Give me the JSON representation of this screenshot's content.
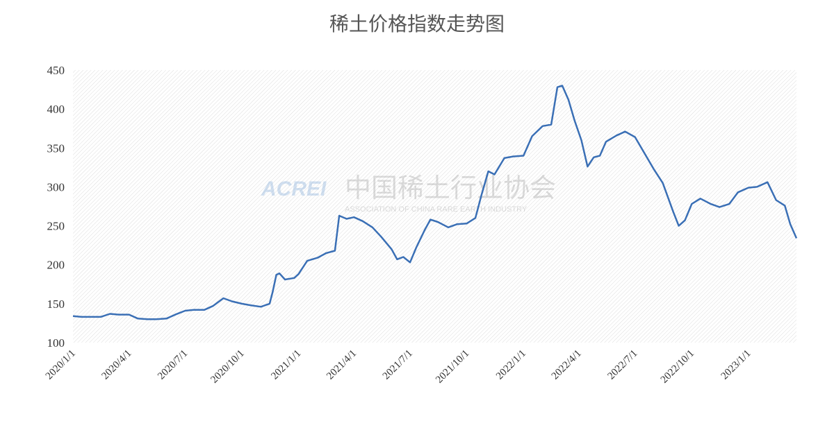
{
  "chart_data": {
    "type": "line",
    "title": "稀土价格指数走势图",
    "watermark": {
      "logo": "ACREI",
      "name": "中国稀土行业协会",
      "subtitle": "ASSOCIATION OF CHINA RARE EARTH INDUSTRY"
    },
    "x": [
      "2020/1/1",
      "2020/1/15",
      "2020/2/1",
      "2020/2/15",
      "2020/3/1",
      "2020/3/15",
      "2020/4/1",
      "2020/4/15",
      "2020/5/1",
      "2020/5/15",
      "2020/6/1",
      "2020/6/15",
      "2020/7/1",
      "2020/7/15",
      "2020/8/1",
      "2020/8/15",
      "2020/9/1",
      "2020/9/15",
      "2020/10/1",
      "2020/10/15",
      "2020/11/1",
      "2020/11/15",
      "2020/11/20",
      "2020/11/26",
      "2020/12/1",
      "2020/12/10",
      "2020/12/25",
      "2021/1/1",
      "2021/1/15",
      "2021/2/1",
      "2021/2/15",
      "2021/3/1",
      "2021/3/8",
      "2021/3/20",
      "2021/4/1",
      "2021/4/15",
      "2021/5/1",
      "2021/5/15",
      "2021/6/1",
      "2021/6/10",
      "2021/6/20",
      "2021/7/1",
      "2021/7/11",
      "2021/7/25",
      "2021/8/3",
      "2021/8/15",
      "2021/9/1",
      "2021/9/15",
      "2021/10/1",
      "2021/10/15",
      "2021/10/25",
      "2021/11/5",
      "2021/11/15",
      "2021/12/1",
      "2021/12/15",
      "2022/1/1",
      "2022/1/15",
      "2022/2/1",
      "2022/2/15",
      "2022/2/25",
      "2022/3/5",
      "2022/3/15",
      "2022/3/25",
      "2022/4/5",
      "2022/4/15",
      "2022/4/25",
      "2022/5/5",
      "2022/5/15",
      "2022/6/1",
      "2022/6/15",
      "2022/7/1",
      "2022/7/15",
      "2022/8/1",
      "2022/8/15",
      "2022/9/1",
      "2022/9/10",
      "2022/9/20",
      "2022/10/1",
      "2022/10/15",
      "2022/11/1",
      "2022/11/15",
      "2022/12/1",
      "2022/12/15",
      "2023/1/1",
      "2023/1/15",
      "2023/2/1",
      "2023/2/15",
      "2023/3/1",
      "2023/3/10",
      "2023/3/20"
    ],
    "series": [
      {
        "name": "稀土价格指数",
        "color": "#3a6fb5",
        "values": [
          134,
          133,
          133,
          133,
          137,
          136,
          136,
          131,
          130,
          130,
          131,
          136,
          141,
          142,
          142,
          147,
          157,
          153,
          150,
          148,
          146,
          150,
          165,
          187,
          189,
          181,
          183,
          188,
          205,
          209,
          215,
          218,
          263,
          259,
          261,
          256,
          248,
          236,
          220,
          207,
          210,
          203,
          222,
          245,
          258,
          255,
          248,
          252,
          253,
          260,
          290,
          320,
          316,
          337,
          339,
          340,
          365,
          378,
          380,
          428,
          430,
          412,
          385,
          360,
          326,
          338,
          340,
          358,
          366,
          371,
          364,
          345,
          322,
          305,
          268,
          250,
          257,
          278,
          285,
          278,
          274,
          278,
          293,
          299,
          300,
          306,
          283,
          276,
          252,
          234
        ]
      }
    ],
    "xlim": [
      "2020/1/1",
      "2023/3/20"
    ],
    "xticks": [
      "2020/1/1",
      "2020/4/1",
      "2020/7/1",
      "2020/10/1",
      "2021/1/1",
      "2021/4/1",
      "2021/7/1",
      "2021/10/1",
      "2022/1/1",
      "2022/4/1",
      "2022/7/1",
      "2022/10/1",
      "2023/1/1"
    ],
    "ylim": [
      100,
      450
    ],
    "yticks": [
      100,
      150,
      200,
      250,
      300,
      350,
      400,
      450
    ],
    "grid": false
  }
}
